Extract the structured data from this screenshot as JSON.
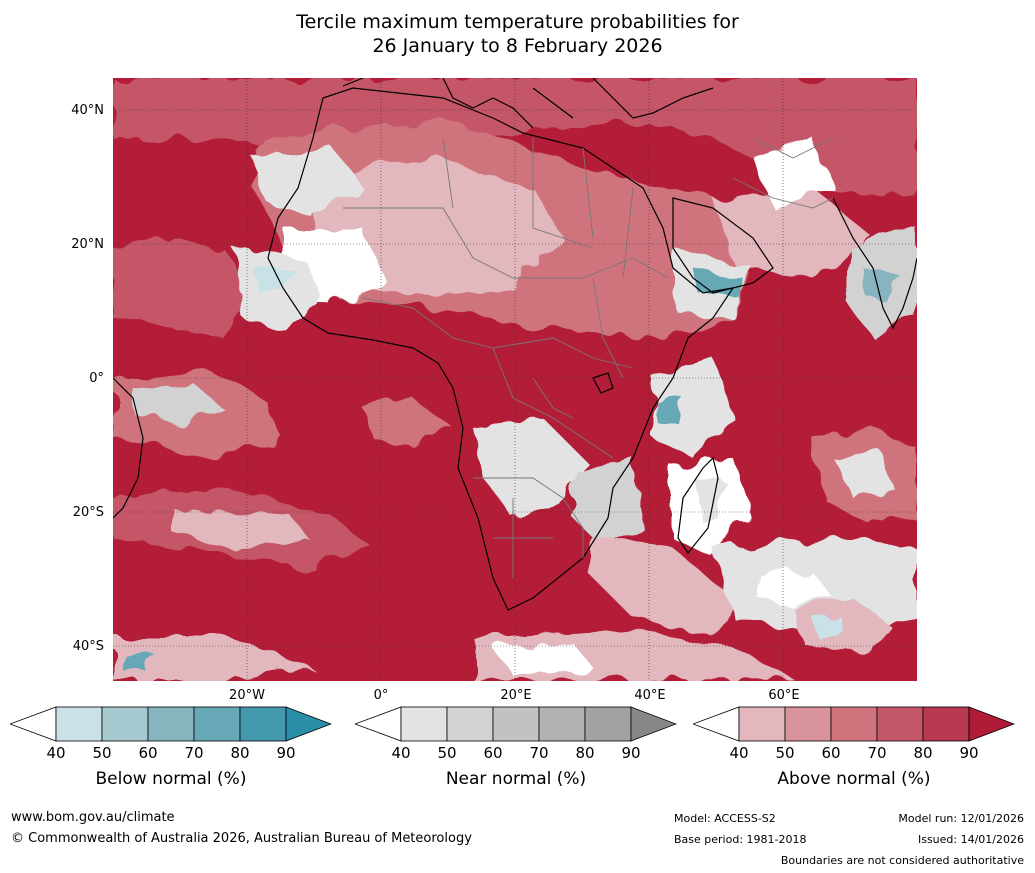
{
  "title": {
    "line1": "Tercile maximum temperature probabilities for",
    "line2": "26 January to 8 February 2026"
  },
  "axes": {
    "lat_labels": [
      "40°N",
      "20°N",
      "0°",
      "20°S",
      "40°S"
    ],
    "lon_labels": [
      "20°W",
      "0°",
      "20°E",
      "40°E",
      "60°E"
    ]
  },
  "colorbars": [
    {
      "title": "Below normal (%)",
      "ticks": [
        "40",
        "50",
        "60",
        "70",
        "80",
        "90"
      ],
      "colors": [
        "#ffffff",
        "#c8e2e8",
        "#a6c8cf",
        "#88b4c0",
        "#66a8b6",
        "#4499ad",
        "#2c8ea6"
      ]
    },
    {
      "title": "Near normal (%)",
      "ticks": [
        "40",
        "50",
        "60",
        "70",
        "80",
        "90"
      ],
      "colors": [
        "#ffffff",
        "#e3e3e3",
        "#d2d2d2",
        "#c2c2c2",
        "#b2b2b2",
        "#a2a2a2",
        "#878787"
      ]
    },
    {
      "title": "Above normal (%)",
      "ticks": [
        "40",
        "50",
        "60",
        "70",
        "80",
        "90"
      ],
      "colors": [
        "#ffffff",
        "#e2b7bd",
        "#d8939b",
        "#cf737d",
        "#c45767",
        "#b73950",
        "#b01c37"
      ]
    }
  ],
  "footer": {
    "url": "www.bom.gov.au/climate",
    "copyright": "© Commonwealth of Australia 2026, Australian Bureau of Meteorology",
    "model": "Model: ACCESS-S2",
    "base_period": "Base period: 1981-2018",
    "model_run": "Model run: 12/01/2026",
    "issued": "Issued: 14/01/2026",
    "disclaimer": "Boundaries are not considered authoritative"
  }
}
